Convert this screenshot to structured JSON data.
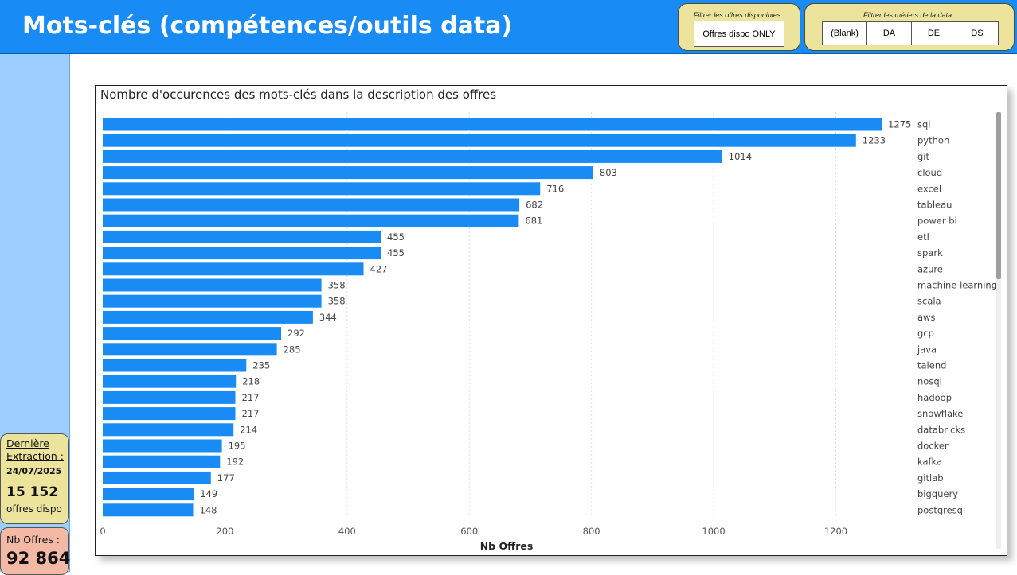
{
  "header": {
    "title": "Mots-clés (compétences/outils data)"
  },
  "filters": {
    "dispo": {
      "title": "Filtrer les offres disponibles :",
      "button": "Offres dispo ONLY"
    },
    "metiers": {
      "title": "Filtrer les métiers de la data :",
      "buttons": [
        "(Blank)",
        "DA",
        "DE",
        "DS"
      ]
    }
  },
  "sidebar": {
    "extraction": {
      "label_line1": "Dernière",
      "label_line2": "Extraction :",
      "date": "24/07/2025",
      "count": "15 152",
      "count_label": "offres dispo"
    },
    "total": {
      "label": "Nb Offres :",
      "value": "92 864"
    }
  },
  "colors": {
    "bar": "#188bf5",
    "header": "#188bf5",
    "sidebar": "#9ccfff",
    "filter_box": "#ece39c",
    "total_card": "#f4b9a4"
  },
  "chart_data": {
    "type": "bar",
    "orientation": "horizontal",
    "title": "Nombre d'occurences des mots-clés dans la description des offres",
    "xlabel": "Nb Offres",
    "ylabel": "",
    "xlim": [
      0,
      1275
    ],
    "xticks": [
      0,
      200,
      400,
      600,
      800,
      1000,
      1200
    ],
    "grid": true,
    "categories": [
      "sql",
      "python",
      "git",
      "cloud",
      "excel",
      "tableau",
      "power bi",
      "etl",
      "spark",
      "azure",
      "machine learning",
      "scala",
      "aws",
      "gcp",
      "java",
      "talend",
      "nosql",
      "hadoop",
      "snowflake",
      "databricks",
      "docker",
      "kafka",
      "gitlab",
      "bigquery",
      "postgresql"
    ],
    "values": [
      1275,
      1233,
      1014,
      803,
      716,
      682,
      681,
      455,
      455,
      427,
      358,
      358,
      344,
      292,
      285,
      235,
      218,
      217,
      217,
      214,
      195,
      192,
      177,
      149,
      148
    ]
  }
}
